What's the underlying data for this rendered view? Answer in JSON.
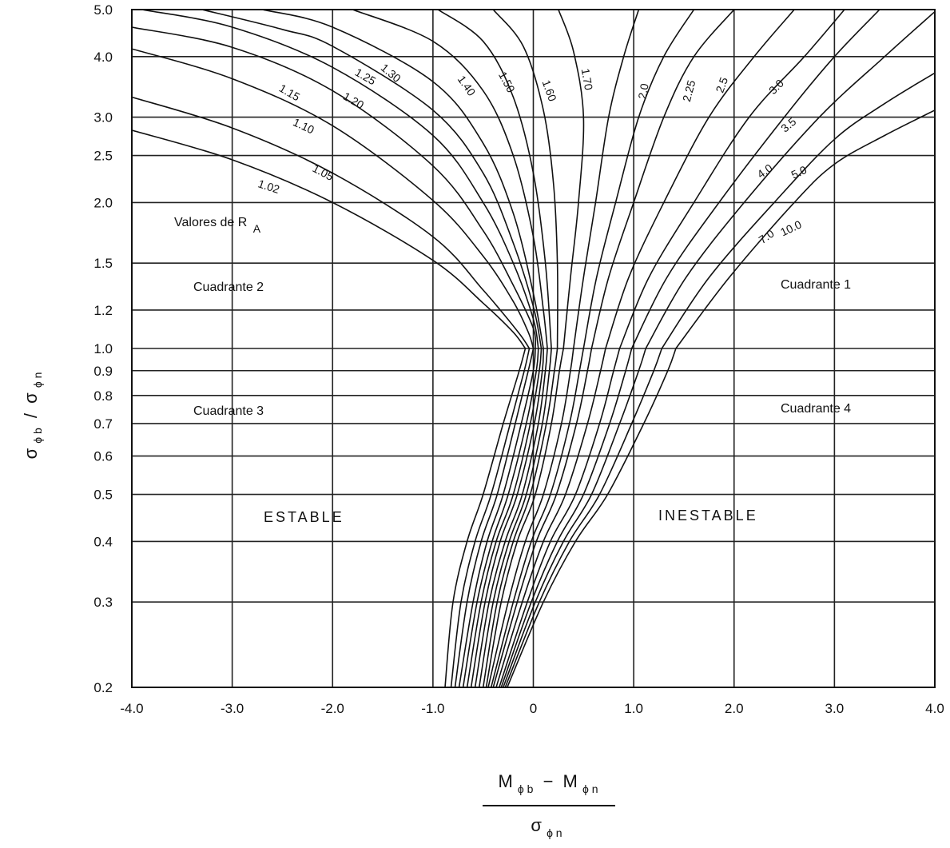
{
  "chart_data": {
    "type": "line",
    "y_scale": "log",
    "xlim": [
      -4.0,
      4.0
    ],
    "ylim": [
      0.2,
      5.0
    ],
    "grid": true,
    "x_ticks": [
      "-4.0",
      "-3.0",
      "-2.0",
      "-1.0",
      "0",
      "1.0",
      "2.0",
      "3.0",
      "4.0"
    ],
    "x_tick_values": [
      -4,
      -3,
      -2,
      -1,
      0,
      1,
      2,
      3,
      4
    ],
    "y_ticks": [
      "0.2",
      "0.3",
      "0.4",
      "0.5",
      "0.6",
      "0.7",
      "0.8",
      "0.9",
      "1.0",
      "1.2",
      "1.5",
      "2.0",
      "2.5",
      "3.0",
      "4.0",
      "5.0"
    ],
    "y_tick_values": [
      0.2,
      0.3,
      0.4,
      0.5,
      0.6,
      0.7,
      0.8,
      0.9,
      1.0,
      1.2,
      1.5,
      2.0,
      2.5,
      3.0,
      4.0,
      5.0
    ],
    "xlabel": {
      "numerator": {
        "main1": "M",
        "sub1": "ϕ b",
        "minus": "−",
        "main2": "M",
        "sub2": "ϕ n"
      },
      "denominator": {
        "main": "σ",
        "sub": "ϕ n"
      }
    },
    "ylabel": {
      "main1": "σ",
      "sub1": "ϕ b",
      "slash": "/",
      "main2": "σ",
      "sub2": "ϕ n"
    },
    "annotations": {
      "series_title_text": "Valores de R",
      "series_title_sub": "A",
      "q1": "Cuadrante 1",
      "q2": "Cuadrante 2",
      "q3": "Cuadrante 3",
      "q4": "Cuadrante 4",
      "stable": "ESTABLE",
      "unstable": "INESTABLE"
    },
    "series": [
      {
        "name": "1.02",
        "upper": [
          [
            -4.0,
            2.82
          ],
          [
            -3.0,
            2.45
          ],
          [
            -2.0,
            2.0
          ],
          [
            -1.0,
            1.52
          ],
          [
            -0.5,
            1.24
          ],
          [
            -0.2,
            1.08
          ],
          [
            -0.08,
            1.0
          ]
        ],
        "lower": [
          [
            -0.88,
            0.2
          ],
          [
            -0.8,
            0.3
          ],
          [
            -0.66,
            0.4
          ],
          [
            -0.5,
            0.5
          ],
          [
            -0.3,
            0.7
          ],
          [
            -0.14,
            0.9
          ],
          [
            -0.08,
            1.0
          ]
        ]
      },
      {
        "name": "1.05",
        "upper": [
          [
            -4.0,
            3.3
          ],
          [
            -3.0,
            2.85
          ],
          [
            -2.0,
            2.3
          ],
          [
            -1.0,
            1.7
          ],
          [
            -0.5,
            1.32
          ],
          [
            -0.15,
            1.08
          ],
          [
            -0.04,
            1.0
          ]
        ],
        "lower": [
          [
            -0.82,
            0.2
          ],
          [
            -0.72,
            0.3
          ],
          [
            -0.58,
            0.4
          ],
          [
            -0.42,
            0.5
          ],
          [
            -0.23,
            0.7
          ],
          [
            -0.09,
            0.9
          ],
          [
            -0.04,
            1.0
          ]
        ]
      },
      {
        "name": "1.10",
        "upper": [
          [
            -4.0,
            4.15
          ],
          [
            -3.0,
            3.6
          ],
          [
            -2.0,
            2.88
          ],
          [
            -1.0,
            2.02
          ],
          [
            -0.5,
            1.55
          ],
          [
            -0.2,
            1.25
          ],
          [
            -0.05,
            1.08
          ],
          [
            0.0,
            1.0
          ]
        ],
        "lower": [
          [
            -0.78,
            0.2
          ],
          [
            -0.66,
            0.3
          ],
          [
            -0.52,
            0.4
          ],
          [
            -0.36,
            0.5
          ],
          [
            -0.18,
            0.7
          ],
          [
            -0.05,
            0.9
          ],
          [
            0.0,
            1.0
          ]
        ]
      },
      {
        "name": "1.15",
        "upper": [
          [
            -4.0,
            4.6
          ],
          [
            -3.0,
            4.18
          ],
          [
            -2.0,
            3.4
          ],
          [
            -1.0,
            2.38
          ],
          [
            -0.5,
            1.75
          ],
          [
            -0.2,
            1.35
          ],
          [
            0.0,
            1.1
          ],
          [
            0.02,
            1.0
          ]
        ],
        "lower": [
          [
            -0.74,
            0.2
          ],
          [
            -0.6,
            0.3
          ],
          [
            -0.46,
            0.4
          ],
          [
            -0.3,
            0.5
          ],
          [
            -0.12,
            0.7
          ],
          [
            0.0,
            0.9
          ],
          [
            0.02,
            1.0
          ]
        ]
      },
      {
        "name": "1.20",
        "upper": [
          [
            -3.9,
            5.0
          ],
          [
            -3.0,
            4.6
          ],
          [
            -2.0,
            3.8
          ],
          [
            -1.0,
            2.75
          ],
          [
            -0.5,
            2.0
          ],
          [
            -0.2,
            1.5
          ],
          [
            0.0,
            1.15
          ],
          [
            0.05,
            1.0
          ]
        ],
        "lower": [
          [
            -0.7,
            0.2
          ],
          [
            -0.56,
            0.3
          ],
          [
            -0.41,
            0.4
          ],
          [
            -0.25,
            0.5
          ],
          [
            -0.07,
            0.7
          ],
          [
            0.03,
            0.9
          ],
          [
            0.05,
            1.0
          ]
        ]
      },
      {
        "name": "1.25",
        "upper": [
          [
            -3.3,
            5.0
          ],
          [
            -2.5,
            4.55
          ],
          [
            -2.0,
            4.2
          ],
          [
            -1.0,
            3.1
          ],
          [
            -0.5,
            2.3
          ],
          [
            -0.2,
            1.65
          ],
          [
            0.0,
            1.22
          ],
          [
            0.08,
            1.0
          ]
        ],
        "lower": [
          [
            -0.66,
            0.2
          ],
          [
            -0.52,
            0.3
          ],
          [
            -0.37,
            0.4
          ],
          [
            -0.2,
            0.5
          ],
          [
            -0.03,
            0.7
          ],
          [
            0.06,
            0.9
          ],
          [
            0.08,
            1.0
          ]
        ]
      },
      {
        "name": "1.30",
        "upper": [
          [
            -2.7,
            5.0
          ],
          [
            -2.0,
            4.6
          ],
          [
            -1.0,
            3.55
          ],
          [
            -0.5,
            2.65
          ],
          [
            -0.2,
            1.9
          ],
          [
            0.0,
            1.3
          ],
          [
            0.1,
            1.0
          ]
        ],
        "lower": [
          [
            -0.62,
            0.2
          ],
          [
            -0.48,
            0.3
          ],
          [
            -0.33,
            0.4
          ],
          [
            -0.16,
            0.5
          ],
          [
            0.01,
            0.7
          ],
          [
            0.09,
            0.9
          ],
          [
            0.1,
            1.0
          ]
        ]
      },
      {
        "name": "1.40",
        "upper": [
          [
            -1.8,
            5.0
          ],
          [
            -1.0,
            4.3
          ],
          [
            -0.5,
            3.4
          ],
          [
            -0.2,
            2.5
          ],
          [
            0.0,
            1.7
          ],
          [
            0.1,
            1.2
          ],
          [
            0.14,
            1.0
          ]
        ],
        "lower": [
          [
            -0.58,
            0.2
          ],
          [
            -0.44,
            0.3
          ],
          [
            -0.28,
            0.4
          ],
          [
            -0.11,
            0.5
          ],
          [
            0.05,
            0.7
          ],
          [
            0.12,
            0.9
          ],
          [
            0.14,
            1.0
          ]
        ]
      },
      {
        "name": "1.50",
        "upper": [
          [
            -0.95,
            5.0
          ],
          [
            -0.5,
            4.3
          ],
          [
            -0.2,
            3.3
          ],
          [
            0.0,
            2.3
          ],
          [
            0.12,
            1.5
          ],
          [
            0.18,
            1.0
          ]
        ],
        "lower": [
          [
            -0.54,
            0.2
          ],
          [
            -0.4,
            0.3
          ],
          [
            -0.24,
            0.4
          ],
          [
            -0.07,
            0.5
          ],
          [
            0.09,
            0.7
          ],
          [
            0.16,
            0.9
          ],
          [
            0.18,
            1.0
          ]
        ]
      },
      {
        "name": "1.60",
        "upper": [
          [
            -0.4,
            5.0
          ],
          [
            -0.1,
            4.2
          ],
          [
            0.1,
            3.1
          ],
          [
            0.2,
            2.2
          ],
          [
            0.24,
            1.5
          ],
          [
            0.24,
            1.0
          ]
        ],
        "lower": [
          [
            -0.5,
            0.2
          ],
          [
            -0.36,
            0.3
          ],
          [
            -0.2,
            0.4
          ],
          [
            -0.03,
            0.5
          ],
          [
            0.13,
            0.7
          ],
          [
            0.21,
            0.9
          ],
          [
            0.24,
            1.0
          ]
        ]
      },
      {
        "name": "1.70",
        "upper": [
          [
            0.25,
            5.0
          ],
          [
            0.4,
            4.1
          ],
          [
            0.5,
            3.0
          ],
          [
            0.45,
            2.0
          ],
          [
            0.37,
            1.4
          ],
          [
            0.3,
            1.0
          ]
        ],
        "lower": [
          [
            -0.47,
            0.2
          ],
          [
            -0.32,
            0.3
          ],
          [
            -0.16,
            0.4
          ],
          [
            0.02,
            0.5
          ],
          [
            0.18,
            0.7
          ],
          [
            0.26,
            0.9
          ],
          [
            0.3,
            1.0
          ]
        ]
      },
      {
        "name": "2.0",
        "upper": [
          [
            1.05,
            5.0
          ],
          [
            0.9,
            4.0
          ],
          [
            0.75,
            3.0
          ],
          [
            0.62,
            2.0
          ],
          [
            0.5,
            1.4
          ],
          [
            0.4,
            1.0
          ]
        ],
        "lower": [
          [
            -0.45,
            0.2
          ],
          [
            -0.25,
            0.3
          ],
          [
            -0.08,
            0.4
          ],
          [
            0.1,
            0.5
          ],
          [
            0.28,
            0.7
          ],
          [
            0.37,
            0.9
          ],
          [
            0.4,
            1.0
          ]
        ]
      },
      {
        "name": "2.25",
        "upper": [
          [
            1.6,
            5.0
          ],
          [
            1.3,
            4.0
          ],
          [
            1.05,
            3.0
          ],
          [
            0.82,
            2.0
          ],
          [
            0.63,
            1.4
          ],
          [
            0.5,
            1.0
          ]
        ],
        "lower": [
          [
            -0.42,
            0.2
          ],
          [
            -0.2,
            0.3
          ],
          [
            -0.02,
            0.4
          ],
          [
            0.17,
            0.5
          ],
          [
            0.36,
            0.7
          ],
          [
            0.46,
            0.9
          ],
          [
            0.5,
            1.0
          ]
        ]
      },
      {
        "name": "2.5",
        "upper": [
          [
            2.0,
            5.0
          ],
          [
            1.6,
            4.0
          ],
          [
            1.3,
            3.0
          ],
          [
            1.0,
            2.0
          ],
          [
            0.75,
            1.4
          ],
          [
            0.58,
            1.0
          ]
        ],
        "lower": [
          [
            -0.4,
            0.2
          ],
          [
            -0.16,
            0.3
          ],
          [
            0.03,
            0.4
          ],
          [
            0.23,
            0.5
          ],
          [
            0.43,
            0.7
          ],
          [
            0.54,
            0.9
          ],
          [
            0.58,
            1.0
          ]
        ]
      },
      {
        "name": "3.0",
        "upper": [
          [
            2.6,
            5.0
          ],
          [
            2.2,
            4.0
          ],
          [
            1.75,
            3.0
          ],
          [
            1.3,
            2.0
          ],
          [
            0.95,
            1.4
          ],
          [
            0.72,
            1.0
          ]
        ],
        "lower": [
          [
            -0.37,
            0.2
          ],
          [
            -0.11,
            0.3
          ],
          [
            0.1,
            0.4
          ],
          [
            0.32,
            0.5
          ],
          [
            0.54,
            0.7
          ],
          [
            0.67,
            0.9
          ],
          [
            0.72,
            1.0
          ]
        ]
      },
      {
        "name": "3.5",
        "upper": [
          [
            3.1,
            5.0
          ],
          [
            2.7,
            4.0
          ],
          [
            2.15,
            3.0
          ],
          [
            1.6,
            2.0
          ],
          [
            1.15,
            1.4
          ],
          [
            0.86,
            1.0
          ]
        ],
        "lower": [
          [
            -0.34,
            0.2
          ],
          [
            -0.06,
            0.3
          ],
          [
            0.17,
            0.4
          ],
          [
            0.42,
            0.5
          ],
          [
            0.66,
            0.7
          ],
          [
            0.8,
            0.9
          ],
          [
            0.86,
            1.0
          ]
        ]
      },
      {
        "name": "4.0",
        "upper": [
          [
            3.45,
            5.0
          ],
          [
            3.0,
            4.0
          ],
          [
            2.5,
            3.0
          ],
          [
            1.85,
            2.0
          ],
          [
            1.33,
            1.4
          ],
          [
            0.98,
            1.0
          ]
        ],
        "lower": [
          [
            -0.32,
            0.2
          ],
          [
            -0.02,
            0.3
          ],
          [
            0.24,
            0.4
          ],
          [
            0.5,
            0.5
          ],
          [
            0.76,
            0.7
          ],
          [
            0.92,
            0.9
          ],
          [
            0.98,
            1.0
          ]
        ]
      },
      {
        "name": "5.0",
        "upper": [
          [
            4.0,
            4.95
          ],
          [
            3.5,
            4.0
          ],
          [
            2.85,
            3.0
          ],
          [
            2.1,
            2.0
          ],
          [
            1.52,
            1.4
          ],
          [
            1.12,
            1.0
          ]
        ],
        "lower": [
          [
            -0.3,
            0.2
          ],
          [
            0.02,
            0.3
          ],
          [
            0.3,
            0.4
          ],
          [
            0.58,
            0.5
          ],
          [
            0.86,
            0.7
          ],
          [
            1.05,
            0.9
          ],
          [
            1.12,
            1.0
          ]
        ]
      },
      {
        "name": "7.0",
        "upper": [
          [
            4.0,
            3.7
          ],
          [
            3.5,
            3.2
          ],
          [
            3.0,
            2.7
          ],
          [
            2.4,
            2.0
          ],
          [
            1.75,
            1.4
          ],
          [
            1.28,
            1.0
          ]
        ],
        "lower": [
          [
            -0.28,
            0.2
          ],
          [
            0.06,
            0.3
          ],
          [
            0.36,
            0.4
          ],
          [
            0.66,
            0.5
          ],
          [
            0.98,
            0.7
          ],
          [
            1.2,
            0.9
          ],
          [
            1.28,
            1.0
          ]
        ]
      },
      {
        "name": "10.0",
        "upper": [
          [
            4.0,
            3.1
          ],
          [
            3.5,
            2.75
          ],
          [
            3.0,
            2.4
          ],
          [
            2.6,
            2.0
          ],
          [
            1.95,
            1.4
          ],
          [
            1.42,
            1.0
          ]
        ],
        "lower": [
          [
            -0.26,
            0.2
          ],
          [
            0.1,
            0.3
          ],
          [
            0.42,
            0.4
          ],
          [
            0.74,
            0.5
          ],
          [
            1.1,
            0.7
          ],
          [
            1.34,
            0.9
          ],
          [
            1.42,
            1.0
          ]
        ]
      }
    ]
  }
}
